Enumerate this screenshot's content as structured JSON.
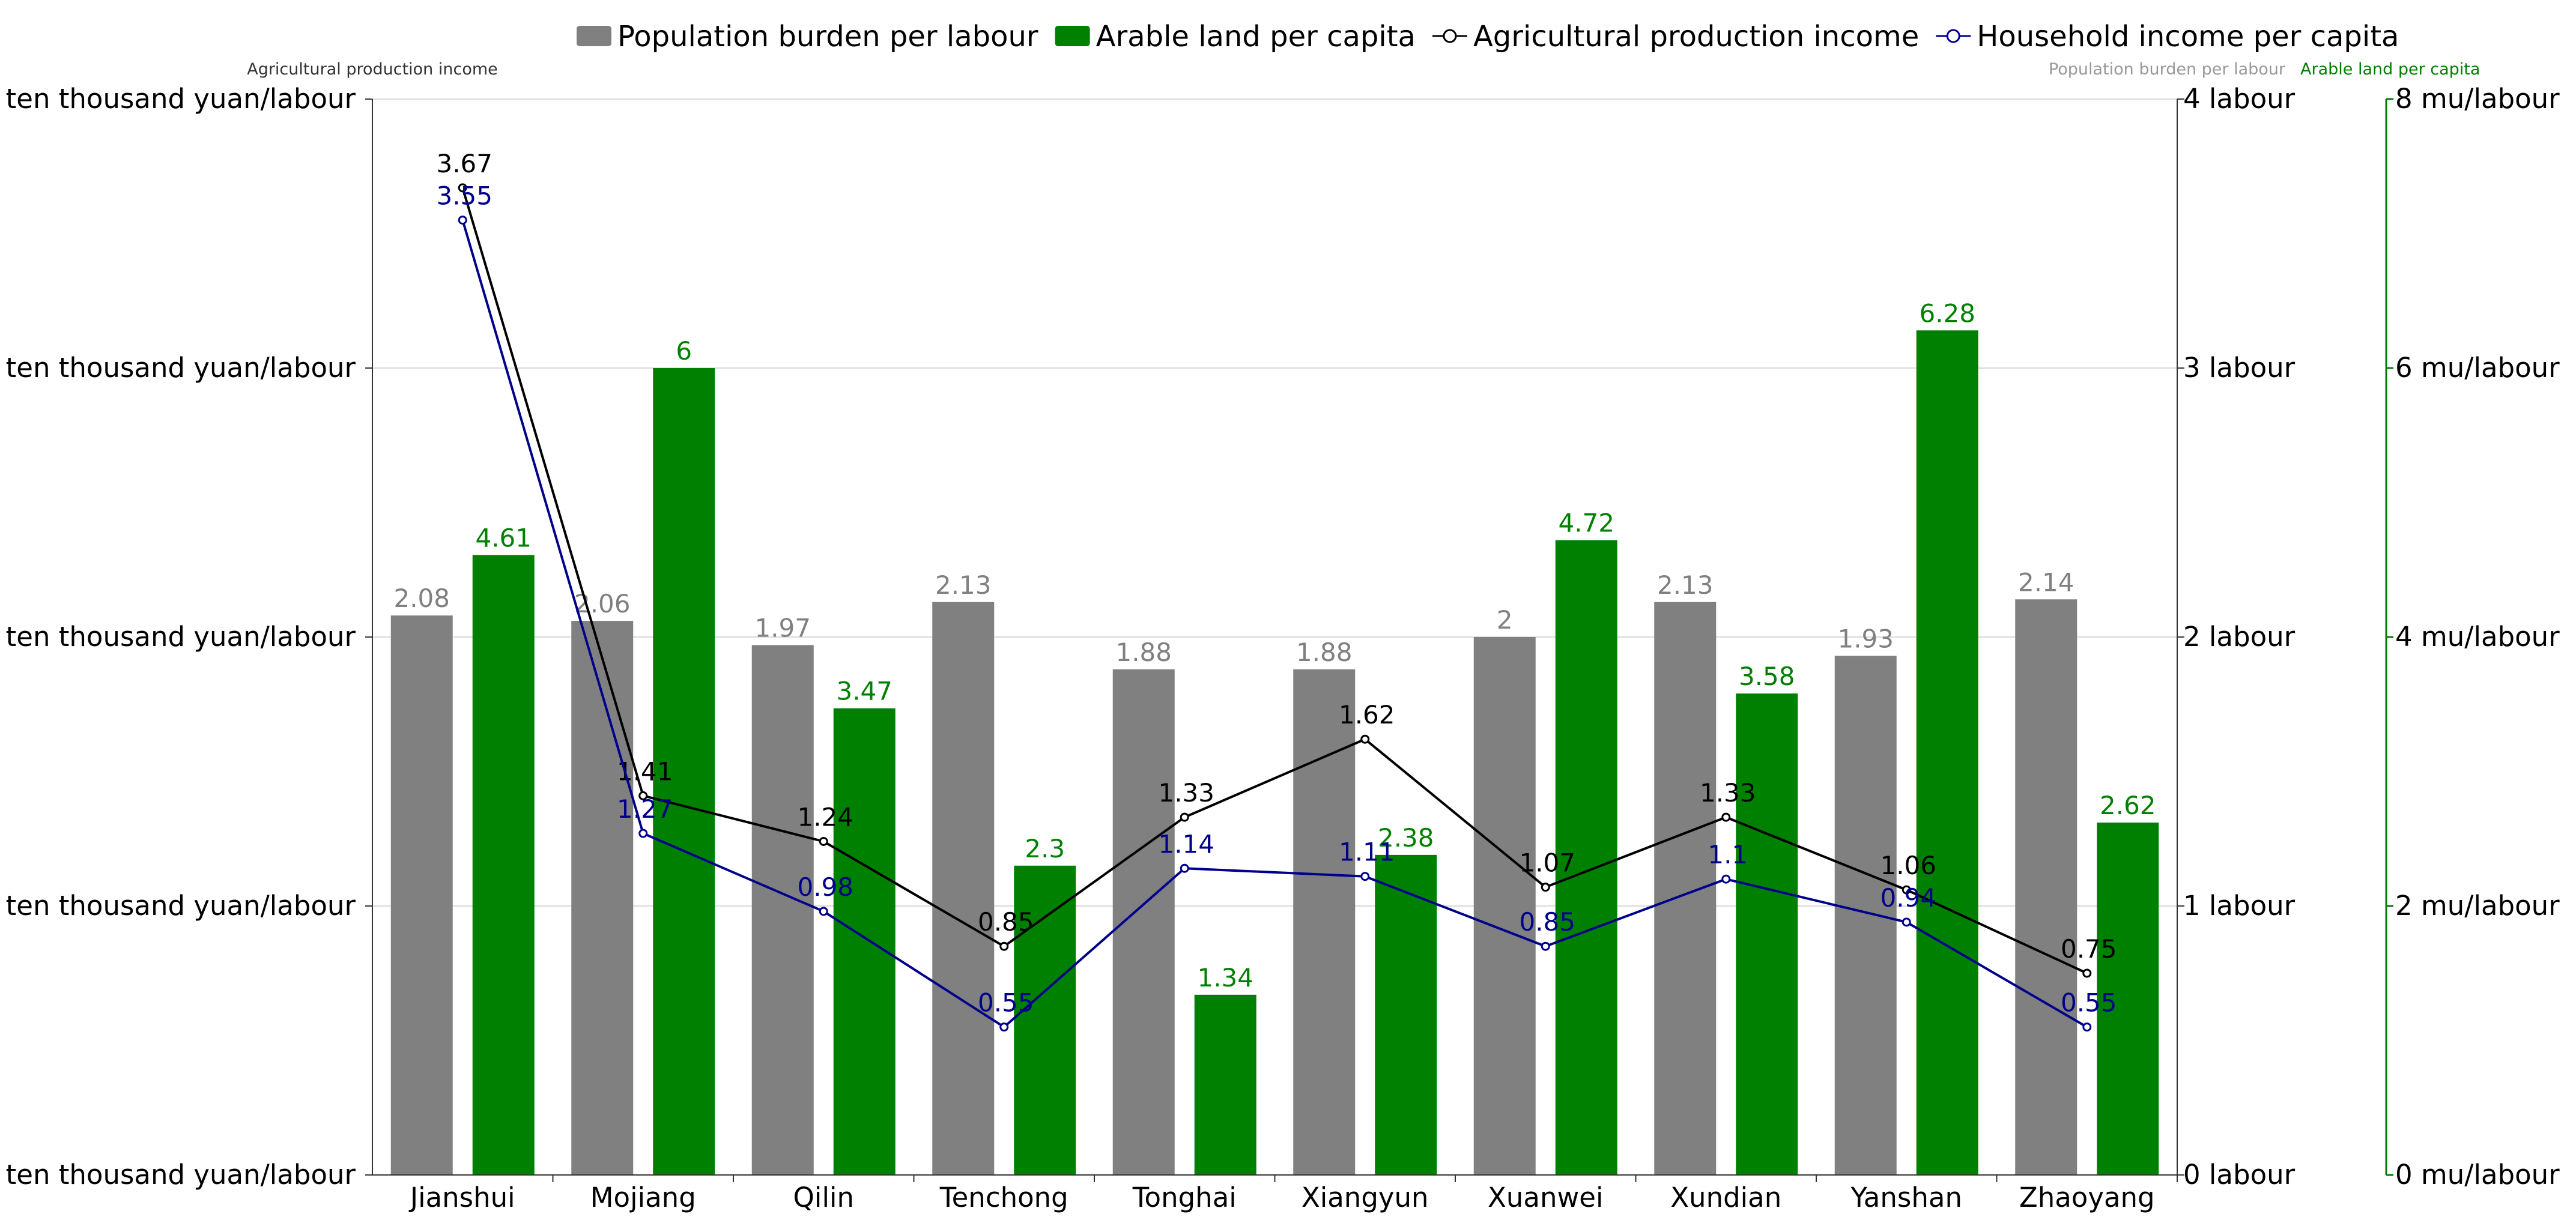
{
  "chart_data": {
    "type": "bar",
    "categories": [
      "Jianshui",
      "Mojiang",
      "Qilin",
      "Tenchong",
      "Tonghai",
      "Xiangyun",
      "Xuanwei",
      "Xundian",
      "Yanshan",
      "Zhaoyang"
    ],
    "series": [
      {
        "name": "Population burden per labour",
        "kind": "bar",
        "axis": "right1",
        "color": "#808080",
        "values": [
          2.08,
          2.06,
          1.97,
          2.13,
          1.88,
          1.88,
          2,
          2.13,
          1.93,
          2.14
        ]
      },
      {
        "name": "Arable land per capita",
        "kind": "bar",
        "axis": "right2",
        "color": "#008000",
        "values": [
          4.61,
          6,
          3.47,
          2.3,
          1.34,
          2.38,
          4.72,
          3.58,
          6.28,
          2.62
        ]
      },
      {
        "name": "Agricultural production income",
        "kind": "line",
        "axis": "left",
        "color": "#000000",
        "values": [
          3.67,
          1.41,
          1.24,
          0.85,
          1.33,
          1.62,
          1.07,
          1.33,
          1.06,
          0.75
        ]
      },
      {
        "name": "Household income per capita",
        "kind": "line",
        "axis": "left",
        "color": "#00008b",
        "values": [
          3.55,
          1.27,
          0.98,
          0.55,
          1.14,
          1.11,
          0.85,
          1.1,
          0.94,
          0.55
        ]
      }
    ],
    "axes": {
      "left": {
        "title": "Agricultural production income",
        "range": [
          0,
          4
        ],
        "ticks": [
          0,
          1,
          2,
          3,
          4
        ],
        "tick_labels": [
          "ten thousand yuan/labour",
          "ten thousand yuan/labour",
          "ten thousand yuan/labour",
          "ten thousand yuan/labour",
          "ten thousand yuan/labour"
        ]
      },
      "right1": {
        "title": "Population burden per labour",
        "range": [
          0,
          4
        ],
        "ticks": [
          0,
          1,
          2,
          3,
          4
        ],
        "tick_labels": [
          "0 labour",
          "1 labour",
          "2 labour",
          "3 labour",
          "4 labour"
        ]
      },
      "right2": {
        "title": "Arable land per capita",
        "range": [
          0,
          8
        ],
        "ticks": [
          0,
          2,
          4,
          6,
          8
        ],
        "tick_labels": [
          "0 mu/labour",
          "2 mu/labour",
          "4 mu/labour",
          "6 mu/labour",
          "8 mu/labour"
        ]
      }
    },
    "legend": {
      "position": "top-center"
    },
    "grid": true
  }
}
